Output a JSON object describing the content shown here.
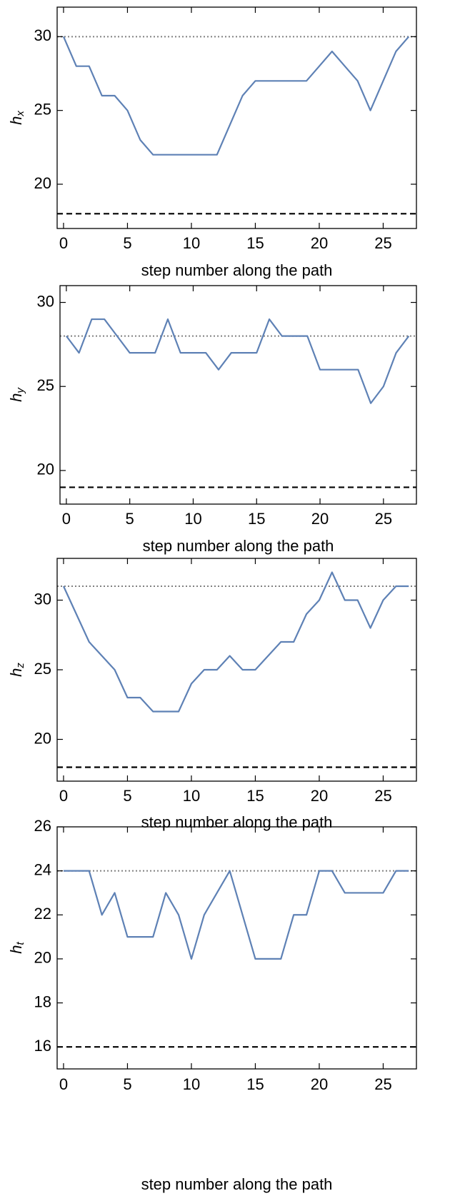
{
  "chart_data": [
    {
      "type": "line",
      "ylabel": "h",
      "ylabel_sub": "x",
      "xlabel": "step number along the path",
      "x": [
        0,
        1,
        2,
        3,
        4,
        5,
        6,
        7,
        8,
        9,
        10,
        11,
        12,
        13,
        14,
        15,
        16,
        17,
        18,
        19,
        20,
        21,
        22,
        23,
        24,
        25,
        26,
        27
      ],
      "values": [
        30,
        28,
        28,
        26,
        26,
        25,
        23,
        22,
        22,
        22,
        22,
        22,
        22,
        24,
        26,
        27,
        27,
        27,
        27,
        27,
        28,
        29,
        28,
        27,
        25,
        27,
        29,
        30
      ],
      "color": "#5e81b5",
      "xlim": [
        -0.5,
        27.6
      ],
      "ylim": [
        17,
        32
      ],
      "xticks": [
        0,
        5,
        10,
        15,
        20,
        25
      ],
      "yticks": [
        20,
        25,
        30
      ],
      "reference_lines": [
        {
          "value": 30,
          "style": "dotted"
        },
        {
          "value": 18,
          "style": "dashed"
        }
      ]
    },
    {
      "type": "line",
      "ylabel": "h",
      "ylabel_sub": "y",
      "xlabel": "step number along the path",
      "x": [
        0,
        1,
        2,
        3,
        4,
        5,
        6,
        7,
        8,
        9,
        10,
        11,
        12,
        13,
        14,
        15,
        16,
        17,
        18,
        19,
        20,
        21,
        22,
        23,
        24,
        25,
        26,
        27
      ],
      "values": [
        28,
        27,
        29,
        29,
        28,
        27,
        27,
        27,
        29,
        27,
        27,
        27,
        26,
        27,
        27,
        27,
        29,
        28,
        28,
        28,
        26,
        26,
        26,
        26,
        24,
        25,
        27,
        28
      ],
      "color": "#5e81b5",
      "xlim": [
        -0.5,
        27.6
      ],
      "ylim": [
        18,
        31
      ],
      "xticks": [
        0,
        5,
        10,
        15,
        20,
        25
      ],
      "yticks": [
        20,
        25,
        30
      ],
      "reference_lines": [
        {
          "value": 28,
          "style": "dotted"
        },
        {
          "value": 19,
          "style": "dashed"
        }
      ]
    },
    {
      "type": "line",
      "ylabel": "h",
      "ylabel_sub": "z",
      "xlabel": "step number along the path",
      "x": [
        0,
        1,
        2,
        3,
        4,
        5,
        6,
        7,
        8,
        9,
        10,
        11,
        12,
        13,
        14,
        15,
        16,
        17,
        18,
        19,
        20,
        21,
        22,
        23,
        24,
        25,
        26,
        27
      ],
      "values": [
        31,
        29,
        27,
        26,
        25,
        23,
        23,
        22,
        22,
        22,
        24,
        25,
        25,
        26,
        25,
        25,
        26,
        27,
        27,
        29,
        30,
        32,
        30,
        30,
        28,
        30,
        31,
        31
      ],
      "color": "#5e81b5",
      "xlim": [
        -0.5,
        27.6
      ],
      "ylim": [
        17,
        33
      ],
      "xticks": [
        0,
        5,
        10,
        15,
        20,
        25
      ],
      "yticks": [
        20,
        25,
        30
      ],
      "reference_lines": [
        {
          "value": 31,
          "style": "dotted"
        },
        {
          "value": 18,
          "style": "dashed"
        }
      ]
    },
    {
      "type": "line",
      "ylabel": "h",
      "ylabel_sub": "t",
      "xlabel": "step number along the path",
      "x": [
        0,
        1,
        2,
        3,
        4,
        5,
        6,
        7,
        8,
        9,
        10,
        11,
        12,
        13,
        14,
        15,
        16,
        17,
        18,
        19,
        20,
        21,
        22,
        23,
        24,
        25,
        26,
        27
      ],
      "values": [
        24,
        24,
        24,
        22,
        23,
        21,
        21,
        21,
        23,
        22,
        20,
        22,
        23,
        24,
        22,
        20,
        20,
        20,
        22,
        22,
        24,
        24,
        23,
        23,
        23,
        23,
        24,
        24
      ],
      "color": "#5e81b5",
      "xlim": [
        -0.5,
        27.6
      ],
      "ylim": [
        15,
        26
      ],
      "xticks": [
        0,
        5,
        10,
        15,
        20,
        25
      ],
      "yticks": [
        16,
        18,
        20,
        22,
        24,
        26
      ],
      "reference_lines": [
        {
          "value": 24,
          "style": "dotted"
        },
        {
          "value": 16,
          "style": "dashed"
        }
      ]
    }
  ]
}
